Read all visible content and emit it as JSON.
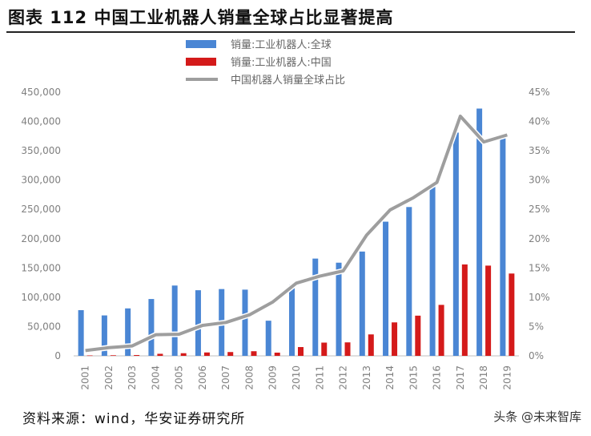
{
  "header": {
    "title": "图表 112  中国工业机器人销量全球占比显著提高"
  },
  "footer": {
    "source": "资料来源：wind，华安证券研究所",
    "watermark": "头条 @未来智库"
  },
  "colors": {
    "global_bar": "#4a86d4",
    "china_bar": "#d41a1a",
    "share_line": "#9e9e9e"
  },
  "chart_data": {
    "type": "bar",
    "categories": [
      "2001",
      "2002",
      "2003",
      "2004",
      "2005",
      "2006",
      "2007",
      "2008",
      "2009",
      "2010",
      "2011",
      "2012",
      "2013",
      "2014",
      "2015",
      "2016",
      "2017",
      "2018",
      "2019"
    ],
    "series": [
      {
        "name": "销量:工业机器人:全球",
        "type": "bar",
        "axis": "left",
        "values": [
          78000,
          69000,
          81000,
          97000,
          120000,
          112000,
          114000,
          113000,
          60000,
          121000,
          166000,
          159000,
          178000,
          229000,
          254000,
          294000,
          381000,
          422000,
          373000
        ]
      },
      {
        "name": "销量:工业机器人:中国",
        "type": "bar",
        "axis": "left",
        "values": [
          700,
          1000,
          1400,
          3500,
          4500,
          5800,
          6500,
          7900,
          5500,
          15000,
          22600,
          23000,
          36600,
          57100,
          68600,
          87000,
          156000,
          154000,
          140500
        ]
      },
      {
        "name": "中国机器人销量全球占比",
        "type": "line",
        "axis": "right",
        "values": [
          0.009,
          0.014,
          0.017,
          0.036,
          0.037,
          0.052,
          0.057,
          0.07,
          0.092,
          0.124,
          0.136,
          0.145,
          0.206,
          0.249,
          0.27,
          0.296,
          0.409,
          0.365,
          0.377
        ]
      }
    ],
    "y_left": {
      "min": 0,
      "max": 450000,
      "step": 50000,
      "tick_labels": [
        "0",
        "50,000",
        "100,000",
        "150,000",
        "200,000",
        "250,000",
        "300,000",
        "350,000",
        "400,000",
        "450,000"
      ]
    },
    "y_right": {
      "min": 0,
      "max": 0.45,
      "step": 0.05,
      "tick_labels": [
        "0%",
        "5%",
        "10%",
        "15%",
        "20%",
        "25%",
        "30%",
        "35%",
        "40%",
        "45%"
      ]
    },
    "grid": false,
    "legend_position": "top-center"
  }
}
